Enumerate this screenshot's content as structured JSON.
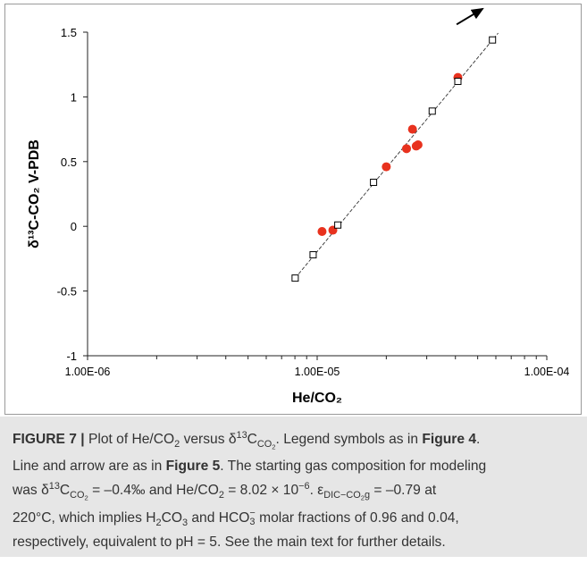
{
  "chart_data": {
    "type": "scatter",
    "xscale": "log",
    "xlim": [
      1e-06,
      0.0001
    ],
    "ylim": [
      -1,
      1.5
    ],
    "xlabel": "He/CO₂",
    "ylabel": "δ¹³C-CO₂ V-PDB",
    "x_tick_labels": [
      "1.00E-06",
      "1.00E-05",
      "1.00E-04"
    ],
    "x_tick_values": [
      1e-06,
      1e-05,
      0.0001
    ],
    "y_tick_labels": [
      "-1",
      "-0.5",
      "0",
      "0.5",
      "1",
      "1.5"
    ],
    "y_tick_values": [
      -1,
      -0.5,
      0,
      0.5,
      1,
      1.5
    ],
    "grid": false,
    "series": [
      {
        "marker": "filled-circle",
        "color": "#e8321e",
        "x": [
          1.05e-05,
          1.17e-05,
          2e-05,
          2.45e-05,
          2.6e-05,
          2.7e-05,
          2.75e-05,
          4.1e-05
        ],
        "y": [
          -0.04,
          -0.03,
          0.46,
          0.6,
          0.75,
          0.62,
          0.63,
          1.15
        ]
      },
      {
        "marker": "open-square",
        "color": "#000000",
        "line": "dashed",
        "x": [
          8.02e-06,
          9.6e-06,
          1.23e-05,
          1.76e-05,
          3.17e-05,
          4.1e-05,
          5.8e-05
        ],
        "y": [
          -0.4,
          -0.22,
          0.01,
          0.34,
          0.89,
          1.12,
          1.44
        ]
      }
    ],
    "arrow": {
      "from": [
        4.05e-05,
        1.56
      ],
      "to": [
        5.25e-05,
        1.68
      ],
      "color": "#000000"
    }
  },
  "caption": {
    "figure_label": "FIGURE 7 |",
    "line1_a": " Plot of He/CO",
    "line1_b": " versus δ",
    "line1_c": "C",
    "line1_d": ". Legend symbols as in ",
    "line1_ref": "Figure 4",
    "line1_end": ".",
    "line2_a": "Line and arrow are as in ",
    "line2_ref": "Figure 5",
    "line2_b": ". The starting gas composition for modeling",
    "line3_a": "was δ",
    "line3_b": "C",
    "line3_c": " = –0.4‰ and He/CO",
    "line3_d": " = 8.02 × 10",
    "line3_exp": "−6",
    "line3_e": ". ε",
    "line3_eps_sub": "DIC−CO",
    "line3_eps_sub2": "g",
    "line3_f": " = –0.79 at",
    "line4_a": "220°C, which implies H",
    "line4_b": "CO",
    "line4_c": " and HCO",
    "line4_d": " molar fractions of 0.96 and 0.04,",
    "line5": "respectively, equivalent to pH = 5. See the main text for further details.",
    "sub_2": "2",
    "sub_3": "3",
    "sub_co2": "CO",
    "sup_13": "13",
    "sup_minus": "−"
  }
}
